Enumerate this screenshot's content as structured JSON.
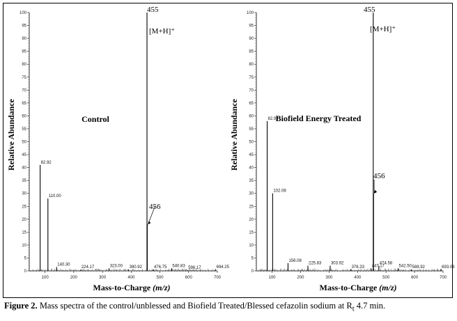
{
  "figure_caption": {
    "label": "Figure 2.",
    "text": "Mass spectra of the control/unblessed and Biofield Treated/Blessed cefazolin sodium at R",
    "subscript": "t",
    "suffix": " 4.7 min."
  },
  "chart_data": [
    {
      "type": "bar",
      "title": "Control",
      "xlabel": "Mass-to-Charge",
      "xlabel_unit": "(m/z)",
      "ylabel": "Relative Abundance",
      "xlim": [
        45,
        700
      ],
      "ylim": [
        0,
        100
      ],
      "xticks": [
        100,
        200,
        300,
        400,
        500,
        600,
        700
      ],
      "yticks": [
        0,
        5,
        10,
        15,
        20,
        25,
        30,
        35,
        40,
        45,
        50,
        55,
        60,
        65,
        70,
        75,
        80,
        85,
        90,
        95,
        100
      ],
      "peaks": [
        {
          "mz": 82.92,
          "abundance": 41,
          "label": "82.92"
        },
        {
          "mz": 110.0,
          "abundance": 28,
          "label": "110.00"
        },
        {
          "mz": 140.3,
          "abundance": 1.5,
          "label": "140.30"
        },
        {
          "mz": 224.17,
          "abundance": 0.5,
          "label": "224.17"
        },
        {
          "mz": 323.0,
          "abundance": 1,
          "label": "323.00"
        },
        {
          "mz": 390.92,
          "abundance": 0.5,
          "label": "390.92"
        },
        {
          "mz": 455,
          "abundance": 100,
          "label": "455"
        },
        {
          "mz": 456,
          "abundance": 18,
          "label": "456"
        },
        {
          "mz": 476.75,
          "abundance": 0.5,
          "label": "476.75"
        },
        {
          "mz": 540.83,
          "abundance": 1,
          "label": "540.83"
        },
        {
          "mz": 596.17,
          "abundance": 0.3,
          "label": "596.17"
        },
        {
          "mz": 694.25,
          "abundance": 0.5,
          "label": "694.25"
        }
      ],
      "annotations": {
        "ion_label": "[M+H]⁺",
        "isotope_label": "456"
      }
    },
    {
      "type": "bar",
      "title": "Biofield Energy Treated",
      "xlabel": "Mass-to-Charge",
      "xlabel_unit": "(m/z)",
      "ylabel": "Relative Abundance",
      "xlim": [
        45,
        700
      ],
      "ylim": [
        0,
        100
      ],
      "xticks": [
        100,
        200,
        300,
        400,
        500,
        600,
        700
      ],
      "yticks": [
        0,
        5,
        10,
        15,
        20,
        25,
        30,
        35,
        40,
        45,
        50,
        55,
        60,
        65,
        70,
        75,
        80,
        85,
        90,
        95,
        100
      ],
      "peaks": [
        {
          "mz": 82.92,
          "abundance": 58,
          "label": "82.92"
        },
        {
          "mz": 102.08,
          "abundance": 30,
          "label": "102.08"
        },
        {
          "mz": 156.08,
          "abundance": 3,
          "label": "156.08"
        },
        {
          "mz": 225.83,
          "abundance": 2,
          "label": "225.83"
        },
        {
          "mz": 303.92,
          "abundance": 2,
          "label": "303.92"
        },
        {
          "mz": 376.33,
          "abundance": 0.5,
          "label": "376.33"
        },
        {
          "mz": 447.17,
          "abundance": 1,
          "label": "447.17"
        },
        {
          "mz": 455,
          "abundance": 100,
          "label": "455"
        },
        {
          "mz": 456,
          "abundance": 30,
          "label": "456"
        },
        {
          "mz": 474.58,
          "abundance": 2,
          "label": "474.58"
        },
        {
          "mz": 542.5,
          "abundance": 1,
          "label": "542.50"
        },
        {
          "mz": 588.92,
          "abundance": 0.5,
          "label": "588.92"
        },
        {
          "mz": 693.08,
          "abundance": 0.5,
          "label": "693.08"
        }
      ],
      "annotations": {
        "ion_label": "[M+H]⁺",
        "isotope_label": "456"
      }
    }
  ]
}
